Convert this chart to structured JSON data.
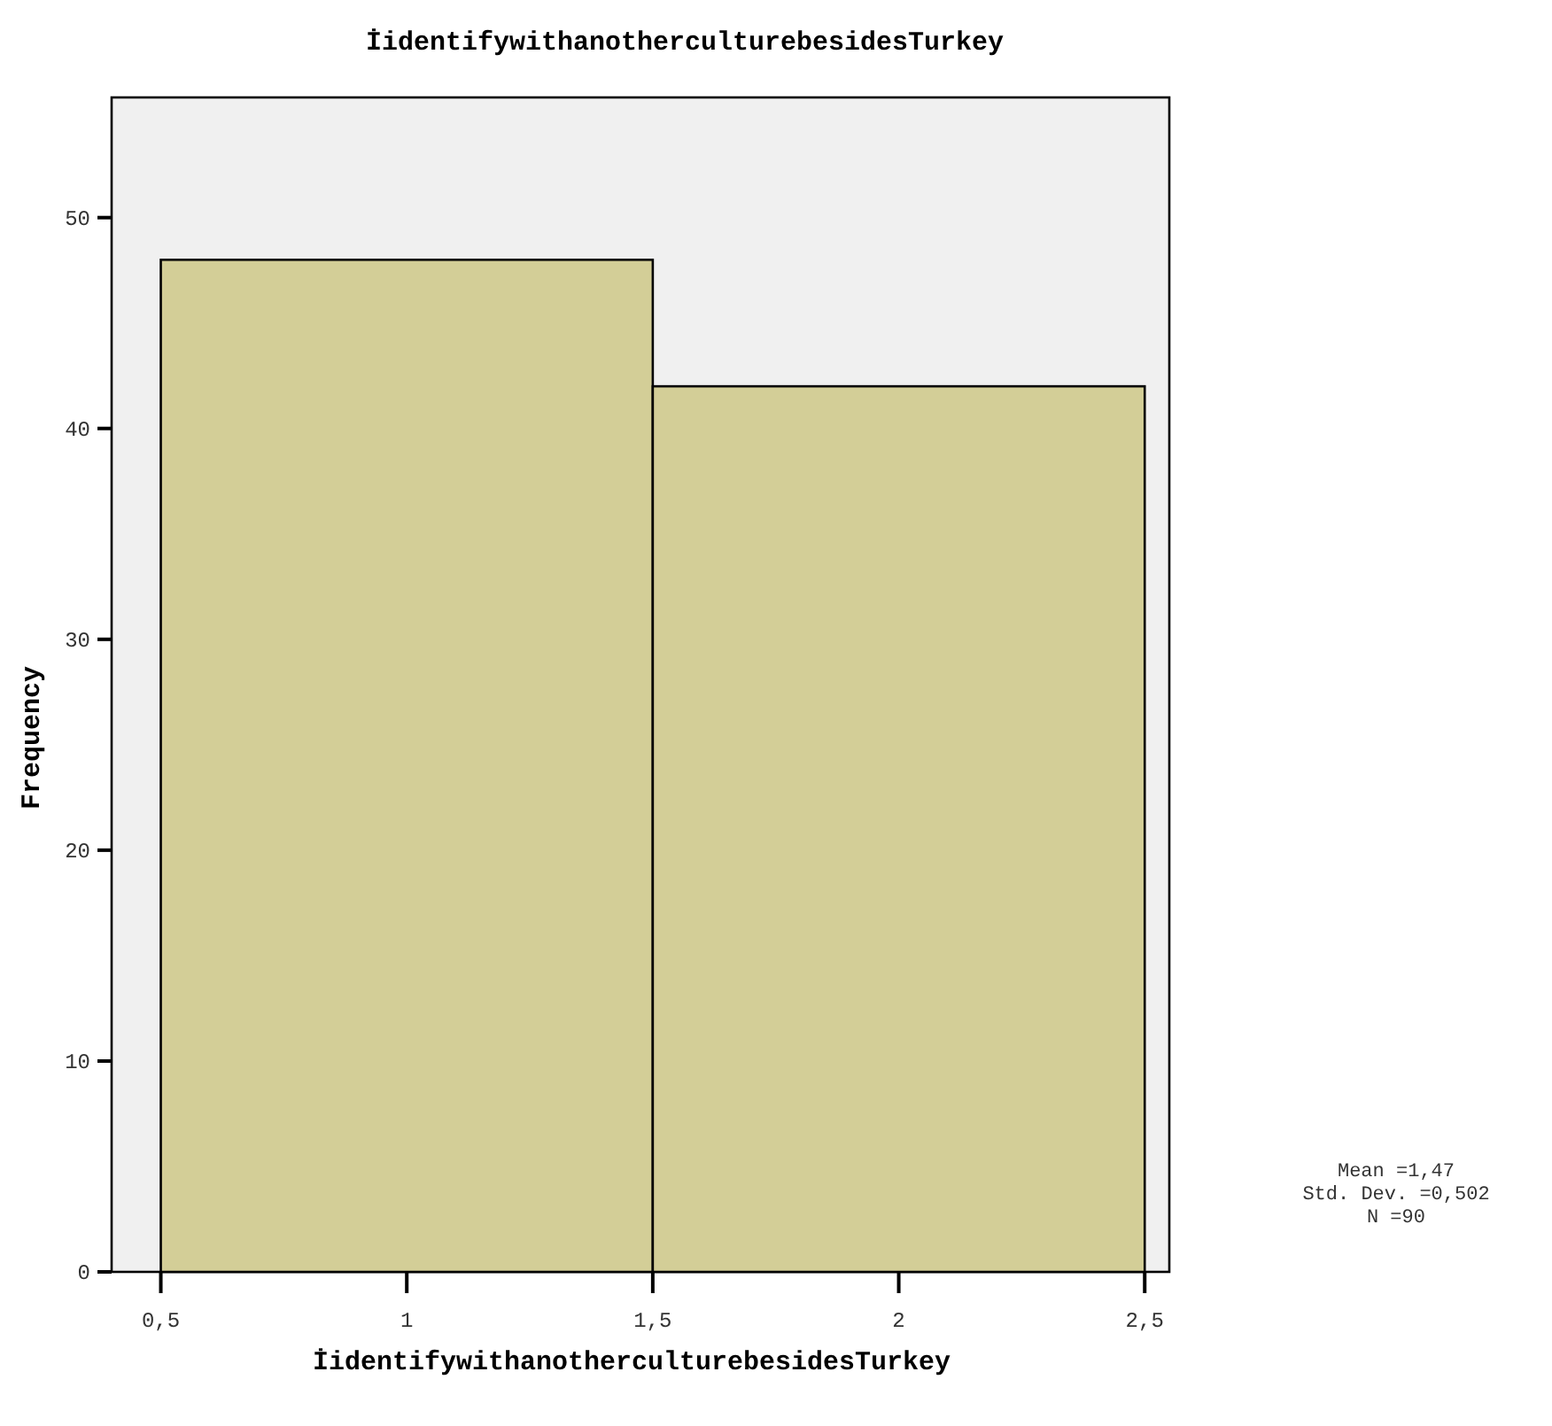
{
  "chart_data": {
    "type": "histogram",
    "title": "İidentifywithanotherculturebesidesTurkey",
    "xlabel": "İidentifywithanotherculturebesidesTurkey",
    "ylabel": "Frequency",
    "bins": [
      0.5,
      1.5,
      2.5
    ],
    "values": [
      48,
      42
    ],
    "color": "#d3ce97",
    "xlim": [
      0.4,
      2.55
    ],
    "ylim": [
      0,
      55.7
    ],
    "xticks": [
      {
        "value": 0.5,
        "label": "0,5"
      },
      1,
      {
        "value": 1.5,
        "label": "1,5"
      },
      2,
      {
        "value": 2.5,
        "label": "2,5"
      }
    ],
    "yticks": [
      0,
      10,
      20,
      30,
      40,
      50
    ],
    "grid": false,
    "annotations": [
      "Mean =1,47",
      "Std. Dev. =0,502",
      "N =90"
    ]
  }
}
